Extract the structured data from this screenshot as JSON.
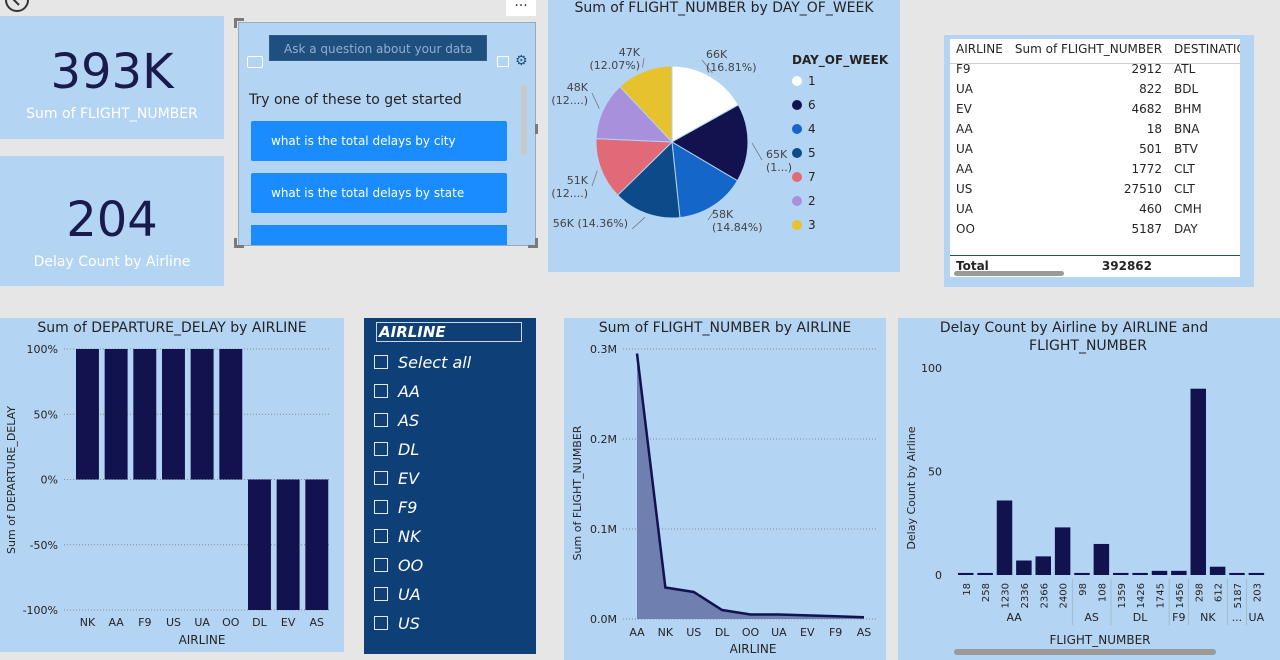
{
  "kpi1": {
    "value": "393K",
    "label": "Sum of FLIGHT_NUMBER"
  },
  "kpi2": {
    "value": "204",
    "label": "Delay Count by Airline"
  },
  "qna": {
    "placeholder": "Ask a question about your data",
    "prompt": "Try one of these to get started",
    "suggestions": [
      "what is the total delays by city",
      "what is the total delays by state"
    ],
    "more_icon": "more-options-icon"
  },
  "pie": {
    "title": "Sum of FLIGHT_NUMBER by DAY_OF_WEEK",
    "legend_title": "DAY_OF_WEEK",
    "legend": [
      {
        "label": "1",
        "color": "#ffffff"
      },
      {
        "label": "6",
        "color": "#12124e"
      },
      {
        "label": "4",
        "color": "#1466c8"
      },
      {
        "label": "5",
        "color": "#0c4a8a"
      },
      {
        "label": "7",
        "color": "#e06a75"
      },
      {
        "label": "2",
        "color": "#a990dc"
      },
      {
        "label": "3",
        "color": "#e5c22e"
      }
    ],
    "slice_labels": [
      {
        "l1": "66K",
        "l2": "(16.81%)"
      },
      {
        "l1": "65K",
        "l2": "(1...)"
      },
      {
        "l1": "58K",
        "l2": "(14.84%)"
      },
      {
        "l1": "56K (14.36%)",
        "l2": ""
      },
      {
        "l1": "51K",
        "l2": "(12....)"
      },
      {
        "l1": "48K",
        "l2": "(12....)"
      },
      {
        "l1": "47K",
        "l2": "(12.07%)"
      }
    ]
  },
  "table": {
    "headers": [
      "AIRLINE",
      "Sum of FLIGHT_NUMBER",
      "DESTINATION_"
    ],
    "rows": [
      [
        "F9",
        "2912",
        "ATL"
      ],
      [
        "UA",
        "822",
        "BDL"
      ],
      [
        "EV",
        "4682",
        "BHM"
      ],
      [
        "AA",
        "18",
        "BNA"
      ],
      [
        "UA",
        "501",
        "BTV"
      ],
      [
        "AA",
        "1772",
        "CLT"
      ],
      [
        "US",
        "27510",
        "CLT"
      ],
      [
        "UA",
        "460",
        "CMH"
      ],
      [
        "OO",
        "5187",
        "DAY"
      ]
    ],
    "total_label": "Total",
    "total_value": "392862"
  },
  "slicer": {
    "title": "AIRLINE",
    "items": [
      "Select all",
      "AA",
      "AS",
      "DL",
      "EV",
      "F9",
      "NK",
      "OO",
      "UA",
      "US"
    ]
  },
  "chart_data": [
    {
      "type": "pie",
      "title": "Sum of FLIGHT_NUMBER by DAY_OF_WEEK",
      "legend_title": "DAY_OF_WEEK",
      "categories": [
        "1",
        "6",
        "4",
        "5",
        "7",
        "2",
        "3"
      ],
      "values": [
        66,
        65,
        58,
        56,
        51,
        48,
        47
      ],
      "percent": [
        16.81,
        16.6,
        14.84,
        14.36,
        13.0,
        12.3,
        12.07
      ],
      "unit": "K"
    },
    {
      "type": "bar",
      "title": "Sum of DEPARTURE_DELAY by AIRLINE",
      "xlabel": "AIRLINE",
      "ylabel": "Sum of DEPARTURE_DELAY",
      "categories": [
        "NK",
        "AA",
        "F9",
        "US",
        "UA",
        "OO",
        "DL",
        "EV",
        "AS"
      ],
      "values": [
        100,
        100,
        100,
        100,
        100,
        100,
        -100,
        -100,
        -100
      ],
      "ylim": [
        -100,
        100
      ],
      "yticks": [
        "100%",
        "50%",
        "0%",
        "-50%",
        "-100%"
      ],
      "color": "#12124e"
    },
    {
      "type": "area",
      "title": "Sum of FLIGHT_NUMBER by AIRLINE",
      "xlabel": "AIRLINE",
      "ylabel": "Sum of FLIGHT_NUMBER",
      "categories": [
        "AA",
        "NK",
        "US",
        "DL",
        "OO",
        "UA",
        "EV",
        "F9",
        "AS"
      ],
      "values": [
        0.295,
        0.035,
        0.03,
        0.01,
        0.005,
        0.005,
        0.004,
        0.003,
        0.002
      ],
      "ylim": [
        0,
        0.3
      ],
      "yticks": [
        "0.3M",
        "0.2M",
        "0.1M",
        "0.0M"
      ],
      "color": "#12124e"
    },
    {
      "type": "bar",
      "title": "Delay Count by Airline by AIRLINE and FLIGHT_NUMBER",
      "xlabel": "FLIGHT_NUMBER",
      "ylabel": "Delay Count by Airline",
      "categories": [
        "18",
        "258",
        "1230",
        "2336",
        "2366",
        "2400",
        "98",
        "108",
        "1359",
        "1426",
        "1745",
        "1456",
        "298",
        "612",
        "5187",
        "203"
      ],
      "groups": [
        {
          "label": "AA",
          "span": 6
        },
        {
          "label": "AS",
          "span": 2
        },
        {
          "label": "DL",
          "span": 3
        },
        {
          "label": "F9",
          "span": 1
        },
        {
          "label": "NK",
          "span": 2
        },
        {
          "label": "...",
          "span": 1
        },
        {
          "label": "UA",
          "span": 1
        }
      ],
      "values": [
        1,
        1,
        36,
        7,
        9,
        23,
        1,
        15,
        1,
        1,
        2,
        2,
        90,
        4,
        1,
        1
      ],
      "ylim": [
        0,
        100
      ],
      "yticks": [
        "100",
        "50",
        "0"
      ],
      "color": "#12124e"
    }
  ]
}
